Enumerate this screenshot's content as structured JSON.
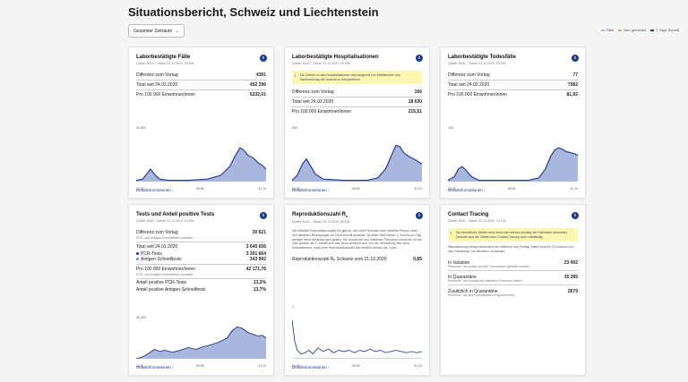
{
  "page_title": "Situationsbericht, Schweiz und Liechtenstein",
  "filter": {
    "selected": "Gesamter Zeitraum"
  },
  "legend": [
    {
      "label": "Fälle",
      "color": "#a9b7df"
    },
    {
      "label": "Neu gemeldet",
      "color": "#e0a96d"
    },
    {
      "label": "7-Tage-Schnitt",
      "color": "#1e3a8a"
    }
  ],
  "colors": {
    "bar": "#a9b7df",
    "line": "#1e3a8a",
    "note": "#fdf6b2"
  },
  "detail_label": "Detailinformationen",
  "cards": {
    "cases": {
      "title": "Laborbestätigte Fälle",
      "source": "Quelle: BAG – Stand: 31.12.2020, 09.53h",
      "rows": [
        {
          "label": "Differenz zum Vortag",
          "value": "4391"
        },
        {
          "label": "Total seit 24.02.2020",
          "value": "452 296"
        },
        {
          "label": "Pro 100 000 Einwohner/innen",
          "value": "5232,01"
        }
      ],
      "ymax": "11.000",
      "x_labels": [
        "24.02",
        "09.06",
        "31.12"
      ]
    },
    "hosp": {
      "title": "Laborbestätigte Hospitalisationen",
      "source": "Quelle: BAG – Stand: 31.12.2020, 09.53h",
      "note": "Die Zahlen zu den Hospitalisationen sind aufgrund von Meldefristen und Nachmeldung mit Vorsicht zu interpretieren.",
      "rows": [
        {
          "label": "Differenz zum Vortag",
          "value": "166"
        },
        {
          "label": "Total seit 24.02.2020",
          "value": "18 630"
        },
        {
          "label": "Pro 100 000 Einwohner/innen",
          "value": "215,51"
        }
      ],
      "ymax": "600",
      "x_labels": [
        "24.02",
        "09.06",
        "31.12"
      ]
    },
    "deaths": {
      "title": "Laborbestätigte Todesfälle",
      "source": "Quelle: BAG – Stand: 31.12.2020, 09.53h",
      "rows": [
        {
          "label": "Differenz zum Vortag",
          "value": "77"
        },
        {
          "label": "Total seit 24.02.2020",
          "value": "7082"
        },
        {
          "label": "Pro 100 000 Einwohner/innen",
          "value": "81,92"
        }
      ],
      "ymax": "130",
      "x_labels": [
        "24.02",
        "09.06",
        "31.12"
      ]
    },
    "tests": {
      "title": "Tests und Anteil positive Tests",
      "source": "Quelle: BAG – Stand: 31.12.2020, 09.53h",
      "diff_label": "Differenz zum Vortag",
      "diff_value": "30 621",
      "diff_sub": "PCR- und Antigen-Schnelltests kumuliert",
      "total_label": "Total seit 24.01.2020",
      "total_value": "3 645 656",
      "pcr_label": "PCR-Tests",
      "pcr_value": "3 301 664",
      "ag_label": "Antigen-Schnelltests",
      "ag_value": "343 992",
      "per100_label": "Pro 100 000 Einwohner/innen",
      "per100_value": "42 171,76",
      "per100_sub": "PCR- und Antigen-Schnelltests kumuliert",
      "share_pcr_label": "Anteil positive PCR-Tests",
      "share_pcr_value": "13,2%",
      "share_ag_label": "Anteil positive Antigen-Schnelltests",
      "share_ag_value": "13,7%",
      "ymax": "40 000",
      "x_labels": [
        "24.01",
        "09.06",
        "31.12"
      ]
    },
    "repro": {
      "title": "Reproduktionszahl R",
      "title_sub": "e",
      "source": "Quelle: BAG – Stand: 31.12.2020, 09.53h",
      "text": "Die effektive Reproduktionszahl Re gibt an, wie viele Personen eine infizierte Person unter den aktuellen Bedingungen im Durchschnitt ansteckt. Ist diese Zahl kleiner 1, wird es pro Tag weniger neue Ansteckungen geben. Die Anzahl der neu infizierten Personen nimmt ab. Ist die Zahl grösser als 1, breitet sich das Virus vermehrt aus. Um die Verbreitung des Virus einzudämmen, muss eine Reproduktionszahl klar deutlich kleiner als 1 sein.",
      "row_label": "Reproduktionszahl Rₑ Schweiz vom 21.12.2020",
      "row_value": "0,85",
      "ymax": "1",
      "x_labels": [
        "02.02",
        "09.06",
        "31.12"
      ]
    },
    "tracing": {
      "title": "Contact Tracing",
      "source": "Quelle: BAG – Stand: 31.12.2020, 10.13h",
      "note": "Die betroffenen Stellen sind durch den starken Anstieg der Fallzahlen überlastet. Deshalb sind die Zahlen zum Contact Tracing nicht vollständig.",
      "text": "Aktualisierung erfolgt mindestens am Mittwoch und Freitag. Daten sind für 21 Kantone und das Fürstentum Liechtenstein vorhanden.",
      "rows": [
        {
          "label": "In Isolation",
          "sub": "Personen, die positiv auf das Coronavirus getestet wurden",
          "value": "23 492"
        },
        {
          "label": "In Quarantäne",
          "sub": "Personen, die Kontakt mit infizierten Personen hatten",
          "value": "35 395"
        },
        {
          "label": "Zusätzlich in Quarantäne",
          "sub": "Personen, die aus Risikoländern eingereist sind",
          "value": "2679"
        }
      ]
    }
  }
}
